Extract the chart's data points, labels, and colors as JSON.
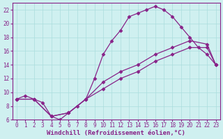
{
  "xlabel": "Windchill (Refroidissement éolien,°C)",
  "bg_color": "#cff0f0",
  "grid_color": "#aadddd",
  "line_color": "#882288",
  "xlim": [
    -0.5,
    23.5
  ],
  "ylim": [
    6,
    23
  ],
  "xticks": [
    0,
    1,
    2,
    3,
    4,
    5,
    6,
    7,
    8,
    9,
    10,
    11,
    12,
    13,
    14,
    15,
    16,
    17,
    18,
    19,
    20,
    21,
    22,
    23
  ],
  "yticks": [
    6,
    8,
    10,
    12,
    14,
    16,
    18,
    20,
    22
  ],
  "series1_x": [
    0,
    1,
    2,
    3,
    4,
    5,
    6,
    7,
    8,
    9,
    10,
    11,
    12,
    13,
    14,
    15,
    16,
    17,
    18,
    19,
    20,
    21,
    22,
    23
  ],
  "series1_y": [
    9.0,
    9.5,
    9.0,
    8.5,
    6.5,
    6.0,
    7.0,
    8.0,
    9.0,
    12.0,
    15.5,
    17.5,
    19.0,
    21.0,
    21.5,
    22.0,
    22.5,
    22.0,
    21.0,
    19.5,
    18.0,
    16.5,
    15.5,
    14.0
  ],
  "series2_x": [
    0,
    2,
    4,
    6,
    8,
    10,
    12,
    14,
    16,
    18,
    20,
    22,
    23
  ],
  "series2_y": [
    9.0,
    9.0,
    6.5,
    7.0,
    9.0,
    11.5,
    13.0,
    14.0,
    15.5,
    16.5,
    17.5,
    17.0,
    14.0
  ],
  "series3_x": [
    0,
    2,
    4,
    6,
    8,
    10,
    12,
    14,
    16,
    18,
    20,
    22,
    23
  ],
  "series3_y": [
    9.0,
    9.0,
    6.5,
    7.0,
    9.0,
    10.5,
    12.0,
    13.0,
    14.5,
    15.5,
    16.5,
    16.5,
    14.0
  ],
  "marker": "D",
  "marker_size": 2.5,
  "linewidth": 0.9,
  "font_family": "monospace",
  "tick_fontsize": 5.5,
  "label_fontsize": 6.5
}
